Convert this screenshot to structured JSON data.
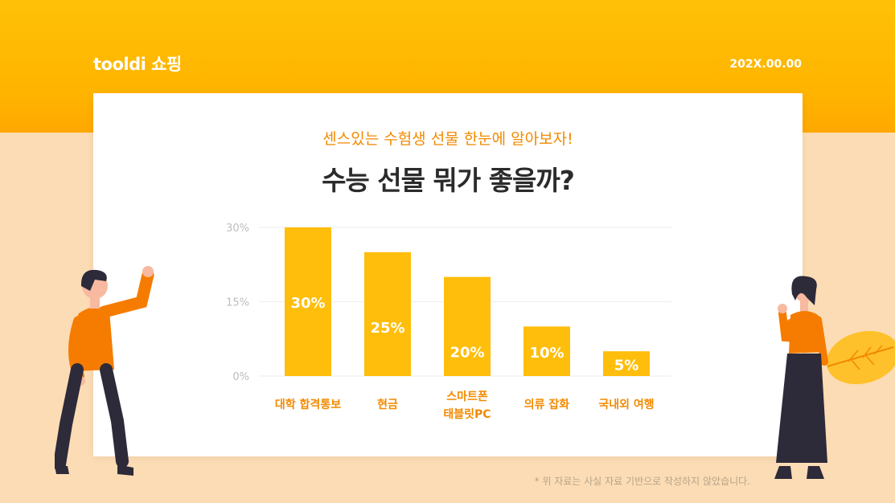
{
  "header": {
    "brand": "tooldi 쇼핑",
    "date": "202X.00.00"
  },
  "card": {
    "subtitle": "센스있는 수험생 선물 한눈에 알아보자!",
    "title": "수능 선물 뭐가 좋을까?"
  },
  "chart_data": {
    "type": "bar",
    "categories": [
      [
        "대학 합격통보"
      ],
      [
        "현금"
      ],
      [
        "스마트폰",
        "태블릿PC"
      ],
      [
        "의류 잡화"
      ],
      [
        "국내외 여행"
      ]
    ],
    "values": [
      30,
      25,
      20,
      10,
      5
    ],
    "data_labels": [
      "30%",
      "25%",
      "20%",
      "10%",
      "5%"
    ],
    "y_ticks": [
      {
        "value": 0,
        "label": "0%"
      },
      {
        "value": 15,
        "label": "15%"
      },
      {
        "value": 30,
        "label": "30%"
      }
    ],
    "ylim": [
      0,
      30
    ],
    "grid": true,
    "colors": {
      "bar": "#ffbe0b",
      "category_text": "#f28a00",
      "tick_text": "#bdbdbd",
      "grid": "#eeeeee"
    }
  },
  "footnote": "* 위 자료는 사실 자료 기반으로 작성하지 않았습니다."
}
